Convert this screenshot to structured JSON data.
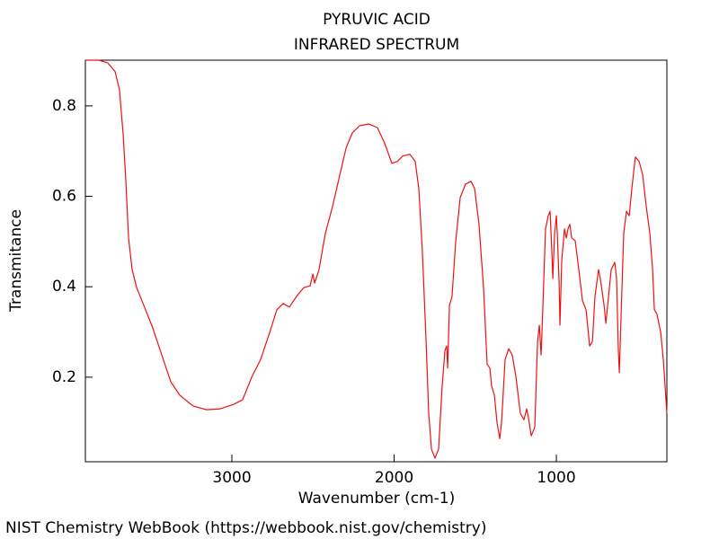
{
  "chart_data": {
    "type": "line",
    "title": "PYRUVIC ACID",
    "subtitle": "INFRARED SPECTRUM",
    "x_label": "Wavenumber (cm-1)",
    "y_label": "Transmitance",
    "source": "NIST Chemistry WebBook (https://webbook.nist.gov/chemistry)",
    "xlim": [
      3903,
      319
    ],
    "ylim": [
      0.013,
      0.901
    ],
    "xticks": [
      3000,
      2000,
      1000
    ],
    "yticks": [
      0.2,
      0.4,
      0.6,
      0.8
    ],
    "grid": false,
    "series": [
      {
        "color": "#ee1111",
        "x": [
          3903,
          3820,
          3765,
          3720,
          3693,
          3670,
          3654,
          3637,
          3615,
          3587,
          3543,
          3488,
          3432,
          3377,
          3321,
          3238,
          3155,
          3072,
          2989,
          2934,
          2878,
          2823,
          2767,
          2723,
          2684,
          2645,
          2601,
          2557,
          2518,
          2501,
          2490,
          2463,
          2424,
          2380,
          2335,
          2296,
          2258,
          2213,
          2158,
          2103,
          2058,
          2014,
          1981,
          1947,
          1903,
          1870,
          1848,
          1826,
          1803,
          1787,
          1770,
          1748,
          1726,
          1704,
          1687,
          1676,
          1670,
          1659,
          1643,
          1621,
          1593,
          1560,
          1526,
          1504,
          1477,
          1449,
          1427,
          1410,
          1399,
          1382,
          1366,
          1349,
          1338,
          1316,
          1294,
          1272,
          1249,
          1222,
          1200,
          1183,
          1172,
          1155,
          1133,
          1116,
          1105,
          1094,
          1083,
          1067,
          1050,
          1039,
          1028,
          1022,
          1011,
          1000,
          994,
          983,
          978,
          967,
          950,
          939,
          928,
          917,
          906,
          884,
          862,
          839,
          817,
          795,
          778,
          762,
          740,
          729,
          706,
          695,
          684,
          662,
          640,
          629,
          618,
          612,
          601,
          585,
          568,
          551,
          535,
          513,
          490,
          468,
          446,
          424,
          407,
          396,
          380,
          357,
          341,
          319
        ],
        "values": [
          0.901,
          0.901,
          0.895,
          0.876,
          0.836,
          0.736,
          0.637,
          0.508,
          0.438,
          0.398,
          0.359,
          0.309,
          0.249,
          0.19,
          0.16,
          0.136,
          0.128,
          0.13,
          0.14,
          0.15,
          0.2,
          0.239,
          0.299,
          0.349,
          0.363,
          0.355,
          0.379,
          0.398,
          0.402,
          0.428,
          0.408,
          0.438,
          0.518,
          0.577,
          0.647,
          0.707,
          0.74,
          0.756,
          0.76,
          0.752,
          0.717,
          0.673,
          0.677,
          0.689,
          0.693,
          0.677,
          0.617,
          0.478,
          0.279,
          0.12,
          0.041,
          0.021,
          0.041,
          0.18,
          0.259,
          0.269,
          0.22,
          0.359,
          0.379,
          0.498,
          0.597,
          0.627,
          0.633,
          0.617,
          0.538,
          0.398,
          0.229,
          0.22,
          0.18,
          0.16,
          0.1,
          0.064,
          0.1,
          0.239,
          0.263,
          0.249,
          0.2,
          0.12,
          0.106,
          0.13,
          0.11,
          0.07,
          0.09,
          0.279,
          0.315,
          0.249,
          0.359,
          0.528,
          0.557,
          0.567,
          0.478,
          0.418,
          0.518,
          0.557,
          0.514,
          0.408,
          0.315,
          0.458,
          0.528,
          0.508,
          0.528,
          0.538,
          0.508,
          0.502,
          0.438,
          0.369,
          0.349,
          0.269,
          0.279,
          0.379,
          0.438,
          0.418,
          0.359,
          0.319,
          0.359,
          0.438,
          0.454,
          0.418,
          0.259,
          0.21,
          0.339,
          0.518,
          0.567,
          0.557,
          0.617,
          0.687,
          0.677,
          0.647,
          0.577,
          0.518,
          0.438,
          0.349,
          0.339,
          0.299,
          0.239,
          0.12
        ]
      }
    ]
  }
}
